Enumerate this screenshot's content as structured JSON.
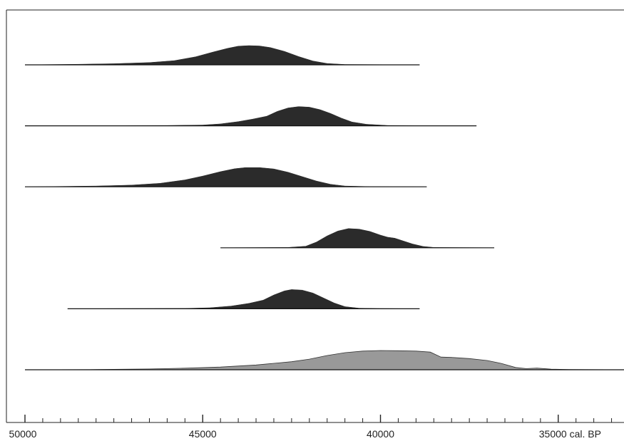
{
  "chart_data": {
    "type": "area",
    "title": "",
    "xlabel": "cal. BP",
    "x_axis": {
      "range": [
        50000,
        33150
      ],
      "reversed": true,
      "major_ticks": [
        50000,
        45000,
        40000,
        35000
      ],
      "major_labels": [
        "50000",
        "45000",
        "40000",
        "35000 cal. BP"
      ],
      "minor_tick_step": 500
    },
    "grid": false,
    "legend": "none",
    "colors": {
      "dark_fill": "#2b2b2b",
      "light_fill": "#999999",
      "baseline": "#111111",
      "frame": "#222222"
    },
    "series": [
      {
        "baseline_range": [
          50000,
          38900
        ],
        "fill": "dark",
        "points": [
          [
            50000,
            0
          ],
          [
            48500,
            0.03
          ],
          [
            47500,
            0.06
          ],
          [
            46500,
            0.12
          ],
          [
            45800,
            0.22
          ],
          [
            45200,
            0.42
          ],
          [
            44700,
            0.67
          ],
          [
            44300,
            0.86
          ],
          [
            44000,
            0.97
          ],
          [
            43700,
            1.0
          ],
          [
            43400,
            0.98
          ],
          [
            43100,
            0.9
          ],
          [
            42700,
            0.7
          ],
          [
            42300,
            0.43
          ],
          [
            41900,
            0.2
          ],
          [
            41500,
            0.07
          ],
          [
            41000,
            0.02
          ],
          [
            38900,
            0
          ]
        ]
      },
      {
        "baseline_range": [
          50000,
          37300
        ],
        "fill": "dark",
        "points": [
          [
            50000,
            0
          ],
          [
            46000,
            0.02
          ],
          [
            45000,
            0.04
          ],
          [
            44500,
            0.1
          ],
          [
            44000,
            0.22
          ],
          [
            43600,
            0.35
          ],
          [
            43200,
            0.5
          ],
          [
            42900,
            0.75
          ],
          [
            42600,
            0.93
          ],
          [
            42300,
            1.0
          ],
          [
            42000,
            0.97
          ],
          [
            41700,
            0.84
          ],
          [
            41400,
            0.64
          ],
          [
            41100,
            0.4
          ],
          [
            40800,
            0.2
          ],
          [
            40400,
            0.08
          ],
          [
            39800,
            0.02
          ],
          [
            37300,
            0
          ]
        ]
      },
      {
        "baseline_range": [
          50000,
          38700
        ],
        "fill": "dark",
        "points": [
          [
            50000,
            0
          ],
          [
            48000,
            0.04
          ],
          [
            47000,
            0.09
          ],
          [
            46200,
            0.18
          ],
          [
            45500,
            0.36
          ],
          [
            45000,
            0.56
          ],
          [
            44500,
            0.79
          ],
          [
            44100,
            0.94
          ],
          [
            43800,
            1.0
          ],
          [
            43400,
            1.0
          ],
          [
            43000,
            0.93
          ],
          [
            42600,
            0.76
          ],
          [
            42200,
            0.53
          ],
          [
            41800,
            0.3
          ],
          [
            41400,
            0.13
          ],
          [
            41000,
            0.04
          ],
          [
            40300,
            0.01
          ],
          [
            38700,
            0
          ]
        ]
      },
      {
        "baseline_range": [
          44500,
          36800
        ],
        "fill": "dark",
        "points": [
          [
            44500,
            0
          ],
          [
            42600,
            0.02
          ],
          [
            42100,
            0.08
          ],
          [
            41800,
            0.3
          ],
          [
            41500,
            0.62
          ],
          [
            41200,
            0.87
          ],
          [
            40900,
            1.0
          ],
          [
            40600,
            0.97
          ],
          [
            40300,
            0.85
          ],
          [
            40000,
            0.66
          ],
          [
            39800,
            0.55
          ],
          [
            39600,
            0.5
          ],
          [
            39400,
            0.38
          ],
          [
            39100,
            0.2
          ],
          [
            38800,
            0.07
          ],
          [
            38500,
            0.02
          ],
          [
            36800,
            0
          ]
        ]
      },
      {
        "baseline_range": [
          48800,
          38900
        ],
        "fill": "dark",
        "points": [
          [
            48800,
            0
          ],
          [
            45500,
            0.02
          ],
          [
            44800,
            0.05
          ],
          [
            44200,
            0.14
          ],
          [
            43700,
            0.28
          ],
          [
            43300,
            0.45
          ],
          [
            43000,
            0.72
          ],
          [
            42700,
            0.93
          ],
          [
            42500,
            1.0
          ],
          [
            42200,
            0.97
          ],
          [
            41900,
            0.82
          ],
          [
            41600,
            0.56
          ],
          [
            41300,
            0.3
          ],
          [
            41000,
            0.11
          ],
          [
            40600,
            0.03
          ],
          [
            40000,
            0.01
          ],
          [
            38900,
            0
          ]
        ]
      },
      {
        "baseline_range": [
          50000,
          33150
        ],
        "fill": "light",
        "points": [
          [
            50000,
            0
          ],
          [
            48000,
            0.01
          ],
          [
            46500,
            0.04
          ],
          [
            45500,
            0.08
          ],
          [
            44500,
            0.14
          ],
          [
            43500,
            0.25
          ],
          [
            42500,
            0.42
          ],
          [
            42000,
            0.55
          ],
          [
            41500,
            0.74
          ],
          [
            41000,
            0.89
          ],
          [
            40500,
            0.97
          ],
          [
            40000,
            1.0
          ],
          [
            39500,
            0.99
          ],
          [
            39000,
            0.97
          ],
          [
            38600,
            0.92
          ],
          [
            38300,
            0.66
          ],
          [
            38000,
            0.64
          ],
          [
            37500,
            0.58
          ],
          [
            37000,
            0.48
          ],
          [
            36600,
            0.33
          ],
          [
            36200,
            0.12
          ],
          [
            35900,
            0.06
          ],
          [
            35600,
            0.09
          ],
          [
            35200,
            0.03
          ],
          [
            34700,
            0.01
          ],
          [
            33150,
            0
          ]
        ]
      }
    ]
  }
}
